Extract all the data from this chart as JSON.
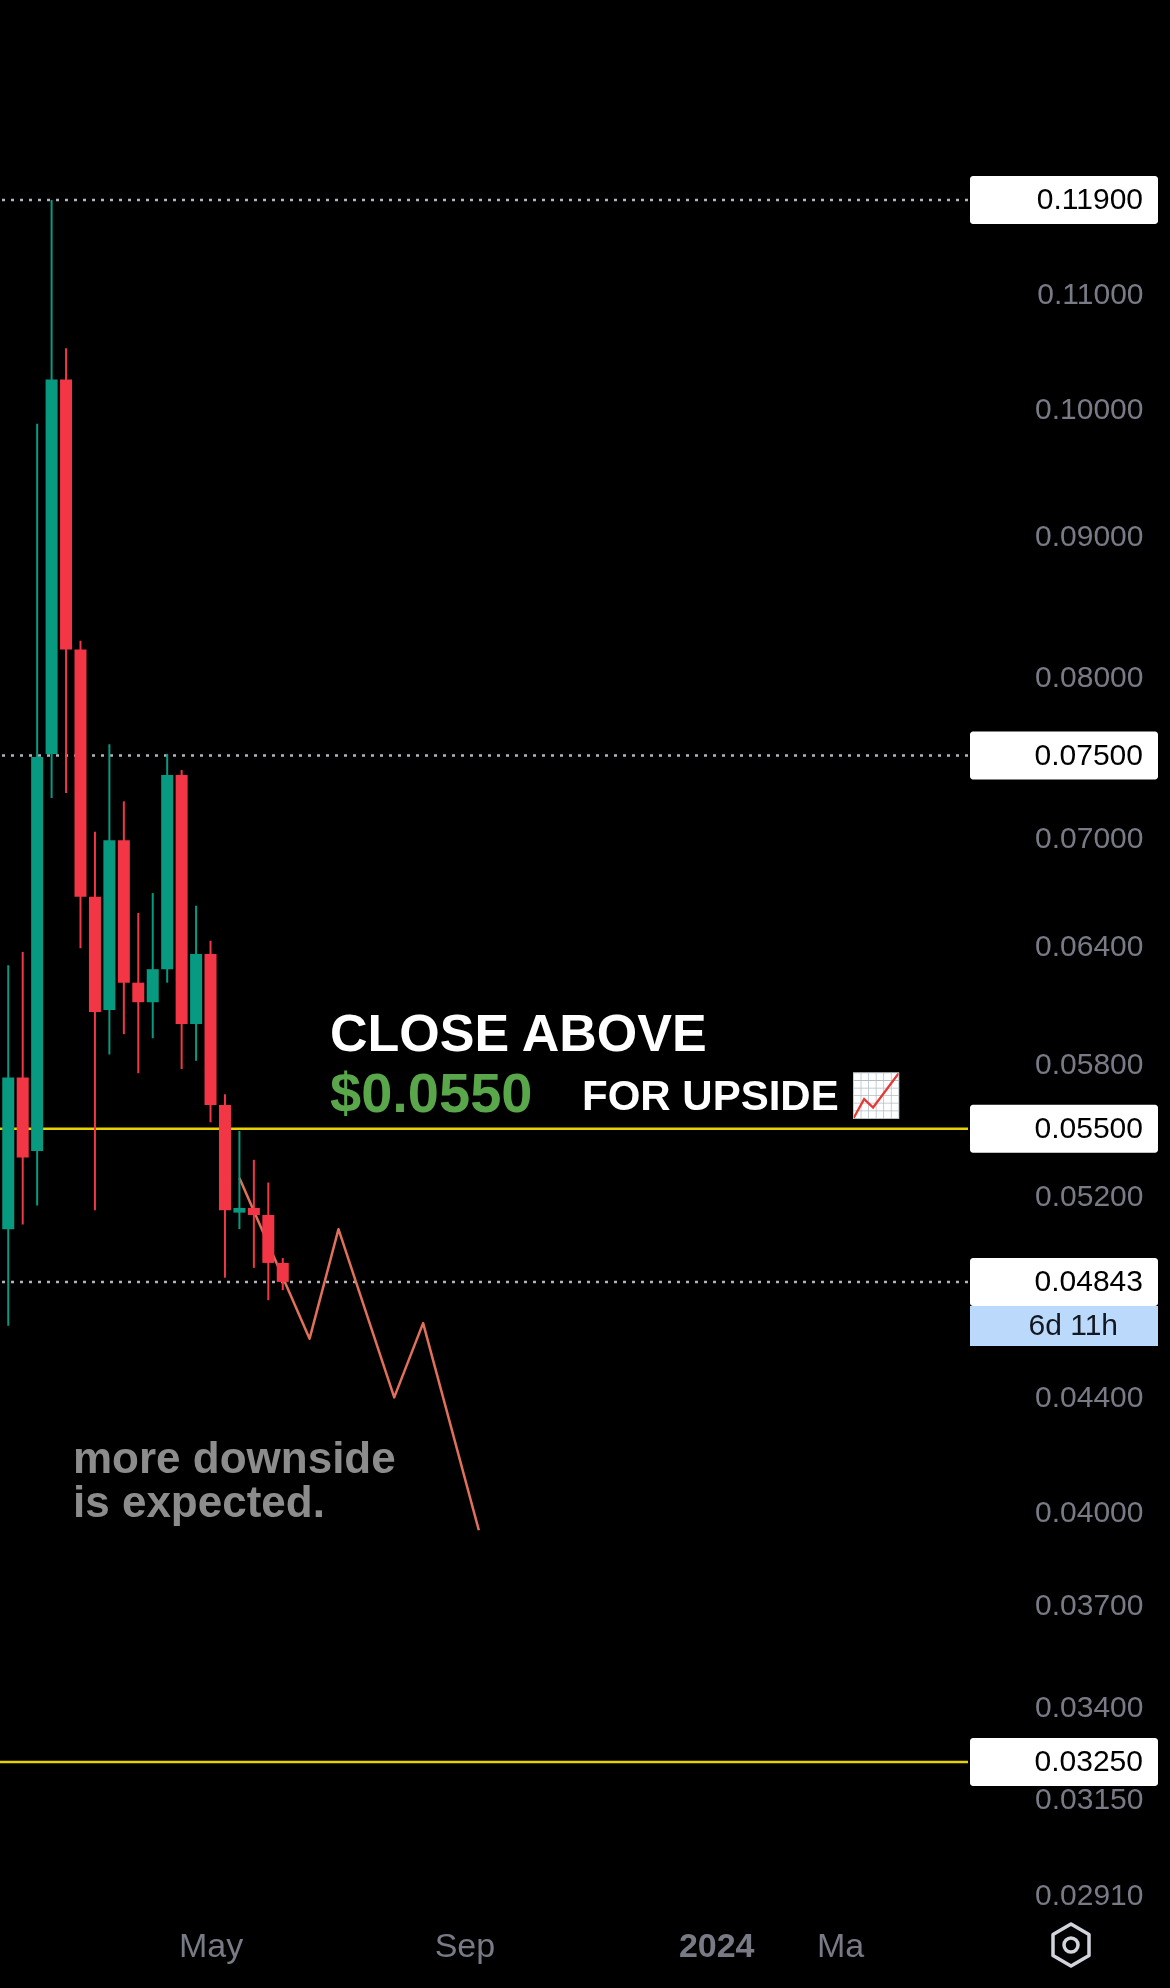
{
  "chart_data": {
    "type": "candlestick",
    "log": true,
    "x": [
      "2023-01-23",
      "2023-01-30",
      "2023-02-06",
      "2023-02-13",
      "2023-02-20",
      "2023-02-27",
      "2023-03-06",
      "2023-03-13",
      "2023-03-20",
      "2023-03-27",
      "2023-04-03",
      "2023-04-10",
      "2023-04-17",
      "2023-04-24",
      "2023-05-01",
      "2023-05-08",
      "2023-05-15",
      "2023-05-22",
      "2023-05-29",
      "2023-06-05"
    ],
    "ohlc": [
      [
        0.0506,
        0.063,
        0.0467,
        0.0574
      ],
      [
        0.0574,
        0.0637,
        0.0508,
        0.0537
      ],
      [
        0.054,
        0.0988,
        0.0516,
        0.0749
      ],
      [
        0.0751,
        0.119,
        0.0724,
        0.1025
      ],
      [
        0.1025,
        0.1052,
        0.0727,
        0.0819
      ],
      [
        0.0819,
        0.0825,
        0.0639,
        0.0667
      ],
      [
        0.0667,
        0.0704,
        0.0514,
        0.0606
      ],
      [
        0.0607,
        0.0757,
        0.0585,
        0.0699
      ],
      [
        0.0699,
        0.0722,
        0.0595,
        0.0621
      ],
      [
        0.0621,
        0.0658,
        0.0576,
        0.0611
      ],
      [
        0.0611,
        0.0669,
        0.0593,
        0.0628
      ],
      [
        0.0628,
        0.0751,
        0.0621,
        0.0738
      ],
      [
        0.0738,
        0.0741,
        0.0578,
        0.06
      ],
      [
        0.06,
        0.0662,
        0.0582,
        0.0636
      ],
      [
        0.0636,
        0.0643,
        0.0553,
        0.0561
      ],
      [
        0.0561,
        0.0566,
        0.0486,
        0.0514
      ],
      [
        0.0513,
        0.0549,
        0.0506,
        0.0515
      ],
      [
        0.0515,
        0.0536,
        0.049,
        0.0512
      ],
      [
        0.0512,
        0.0526,
        0.0477,
        0.0492
      ],
      [
        0.0492,
        0.0494,
        0.0481,
        0.04843
      ]
    ],
    "colors": [
      "#089981",
      "#f23645",
      "#089981",
      "#089981",
      "#f23645",
      "#f23645",
      "#f23645",
      "#089981",
      "#f23645",
      "#f23645",
      "#089981",
      "#089981",
      "#f23645",
      "#089981",
      "#f23645",
      "#f23645",
      "#089981",
      "#f23645",
      "#f23645",
      "#f23645"
    ],
    "series": [
      {
        "type": "line",
        "color": "#e0705a",
        "x": [
          "2023-05-15",
          "2023-06-18",
          "2023-07-02",
          "2023-07-29",
          "2023-08-12",
          "2023-09-08"
        ],
        "values": [
          0.0528,
          0.0462,
          0.0506,
          0.044,
          0.0468,
          0.0394
        ]
      }
    ],
    "xlim": [
      "2023-01-19",
      "2024-05-02"
    ],
    "xticks": [
      {
        "value": "2023-05-01",
        "label": "May"
      },
      {
        "value": "2023-09-01",
        "label": "Sep"
      },
      {
        "value": "2024-01-01",
        "label": "2024"
      },
      {
        "value": "2024-03-01",
        "label": "Ma"
      }
    ],
    "ylim": [
      0.0291,
      0.1405
    ],
    "yticks": [
      {
        "value": 0.11,
        "label": "0.11000"
      },
      {
        "value": 0.1,
        "label": "0.10000"
      },
      {
        "value": 0.09,
        "label": "0.09000"
      },
      {
        "value": 0.08,
        "label": "0.08000"
      },
      {
        "value": 0.07,
        "label": "0.07000"
      },
      {
        "value": 0.064,
        "label": "0.06400"
      },
      {
        "value": 0.058,
        "label": "0.05800"
      },
      {
        "value": 0.052,
        "label": "0.05200"
      },
      {
        "value": 0.044,
        "label": "0.04400"
      },
      {
        "value": 0.04,
        "label": "0.04000"
      },
      {
        "value": 0.037,
        "label": "0.03700"
      },
      {
        "value": 0.034,
        "label": "0.03400"
      },
      {
        "value": 0.0315,
        "label": "0.03150"
      },
      {
        "value": 0.0291,
        "label": "0.02910"
      }
    ],
    "ref_lines": [
      {
        "axis": "y",
        "value": 0.119,
        "label": "0.11900",
        "color": "#b2b5be",
        "line_style": "dotted"
      },
      {
        "axis": "y",
        "value": 0.075,
        "label": "0.07500",
        "color": "#b2b5be",
        "line_style": "dotted"
      },
      {
        "axis": "y",
        "value": 0.055,
        "label": "0.05500",
        "color": "#e6d200",
        "line_style": "solid"
      },
      {
        "axis": "y",
        "value": 0.04843,
        "label": "0.04843",
        "color": "#b2b5be",
        "line_style": "dotted"
      },
      {
        "axis": "y",
        "value": 0.0325,
        "label": "0.03250",
        "color": "#e6d200",
        "line_style": "solid"
      }
    ],
    "annotations": [
      "CLOSE ABOVE",
      "$0.0550",
      "FOR UPSIDE 📈",
      "more downside is expected.",
      "6d 11h"
    ]
  }
}
